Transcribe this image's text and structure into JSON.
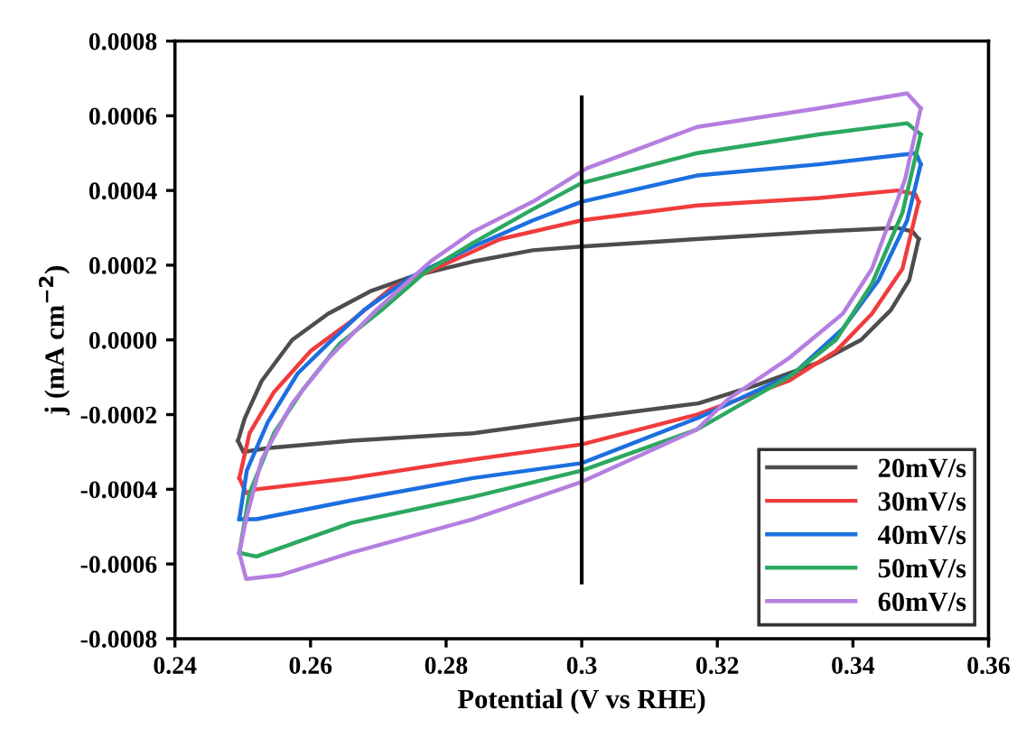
{
  "chart_data": {
    "type": "line",
    "xlabel": "Potential (V vs RHE)",
    "ylabel": "j (mA cm$^{−2}$)",
    "xlim": [
      0.24,
      0.36
    ],
    "xticks": [
      0.24,
      0.26,
      0.28,
      0.3,
      0.32,
      0.34,
      0.36
    ],
    "ylim": [
      -0.0008,
      0.0008
    ],
    "yticks": [
      -0.0008,
      -0.0006,
      -0.0004,
      -0.0002,
      {
        "value": 0,
        "label": "0.0000"
      },
      0.0002,
      0.0004,
      0.0006,
      0.0008
    ],
    "legend": "bottom right",
    "marker": "none",
    "line_style": "solid",
    "ref_lines": [
      {
        "axis": "x",
        "value": 0.3,
        "color": "#000000"
      }
    ],
    "series": [
      {
        "name": "20mV/s",
        "color": "#4d4d4d",
        "x": [
          0.2493,
          0.2503,
          0.2528,
          0.2573,
          0.2626,
          0.2688,
          0.275,
          0.284,
          0.2928,
          0.3,
          0.317,
          0.335,
          0.3466,
          0.3488,
          0.3497
        ],
        "values": [
          -0.00027,
          -0.00021,
          -0.00011,
          0.0,
          7e-05,
          0.00013,
          0.00017,
          0.00021,
          0.00024,
          0.00025,
          0.00027,
          0.00029,
          0.0003,
          0.00029,
          0.00027
        ]
      },
      {
        "color": "#4d4d4d",
        "x": [
          0.3497,
          0.3483,
          0.3456,
          0.3412,
          0.335,
          0.326,
          0.3172,
          0.3,
          0.284,
          0.266,
          0.2536,
          0.2501,
          0.2493
        ],
        "values": [
          0.00027,
          0.00016,
          8e-05,
          0.0,
          -6e-05,
          -0.00012,
          -0.00017,
          -0.00021,
          -0.00025,
          -0.00027,
          -0.00029,
          -0.0003,
          -0.00027
        ]
      },
      {
        "name": "30mV/s",
        "color": "#f03c3c",
        "x": [
          0.2495,
          0.251,
          0.2546,
          0.26,
          0.266,
          0.272,
          0.2795,
          0.288,
          0.3,
          0.317,
          0.335,
          0.3466,
          0.3492,
          0.3497
        ],
        "values": [
          -0.00037,
          -0.00025,
          -0.00014,
          -3e-05,
          5e-05,
          0.00014,
          0.0002,
          0.00027,
          0.00032,
          0.00036,
          0.00038,
          0.0004,
          0.00039,
          0.00037
        ]
      },
      {
        "color": "#f03c3c",
        "x": [
          0.3497,
          0.3473,
          0.3428,
          0.3375,
          0.3305,
          0.317,
          0.3,
          0.284,
          0.266,
          0.252,
          0.2505,
          0.2495
        ],
        "values": [
          0.00037,
          0.00019,
          7e-05,
          -3e-05,
          -0.00011,
          -0.0002,
          -0.00028,
          -0.00032,
          -0.00037,
          -0.0004,
          -0.00041,
          -0.00037
        ]
      },
      {
        "name": "40mV/s",
        "color": "#1c6fe0",
        "x": [
          0.2495,
          0.2506,
          0.2537,
          0.2581,
          0.2626,
          0.2679,
          0.275,
          0.284,
          0.2928,
          0.3,
          0.317,
          0.335,
          0.3493,
          0.35
        ],
        "values": [
          -0.00048,
          -0.00035,
          -0.00022,
          -9e-05,
          -1e-05,
          8e-05,
          0.00017,
          0.00025,
          0.00032,
          0.00037,
          0.00044,
          0.00047,
          0.0005,
          0.00047
        ]
      },
      {
        "color": "#1c6fe0",
        "x": [
          0.35,
          0.348,
          0.3438,
          0.3385,
          0.3313,
          0.317,
          0.3,
          0.284,
          0.266,
          0.252,
          0.2495
        ],
        "values": [
          0.00047,
          0.00032,
          0.00016,
          3e-05,
          -9e-05,
          -0.00021,
          -0.00033,
          -0.00037,
          -0.00043,
          -0.00048,
          -0.00048
        ]
      },
      {
        "name": "50mV/s",
        "color": "#2ca860",
        "x": [
          0.2495,
          0.251,
          0.2546,
          0.259,
          0.2643,
          0.2705,
          0.2768,
          0.284,
          0.2928,
          0.3,
          0.317,
          0.335,
          0.348,
          0.35
        ],
        "values": [
          -0.00057,
          -0.00041,
          -0.00025,
          -0.00013,
          -1e-05,
          8e-05,
          0.00018,
          0.00026,
          0.00035,
          0.00042,
          0.0005,
          0.00055,
          0.00058,
          0.00055
        ]
      },
      {
        "color": "#2ca860",
        "x": [
          0.35,
          0.3473,
          0.3428,
          0.3375,
          0.3305,
          0.317,
          0.3,
          0.284,
          0.266,
          0.252,
          0.2495
        ],
        "values": [
          0.00055,
          0.00034,
          0.00015,
          0.0,
          -0.0001,
          -0.00024,
          -0.00035,
          -0.00042,
          -0.00049,
          -0.00058,
          -0.00057
        ]
      },
      {
        "name": "60mV/s",
        "color": "#b47fe0",
        "x": [
          0.2495,
          0.2505,
          0.2528,
          0.2573,
          0.2626,
          0.2697,
          0.2777,
          0.284,
          0.2928,
          0.3008,
          0.317,
          0.335,
          0.348,
          0.35
        ],
        "values": [
          -0.00057,
          -0.00048,
          -0.00032,
          -0.00017,
          -5e-05,
          8e-05,
          0.00021,
          0.00029,
          0.00037,
          0.00046,
          0.00057,
          0.00062,
          0.00066,
          0.00062
        ]
      },
      {
        "color": "#b47fe0",
        "x": [
          0.35,
          0.3477,
          0.3428,
          0.3385,
          0.3305,
          0.3215,
          0.317,
          0.3,
          0.284,
          0.266,
          0.2555,
          0.2505,
          0.2495
        ],
        "values": [
          0.00062,
          0.00043,
          0.00019,
          7e-05,
          -5e-05,
          -0.00016,
          -0.00024,
          -0.00038,
          -0.00048,
          -0.00057,
          -0.00063,
          -0.00064,
          -0.00057
        ]
      }
    ]
  }
}
